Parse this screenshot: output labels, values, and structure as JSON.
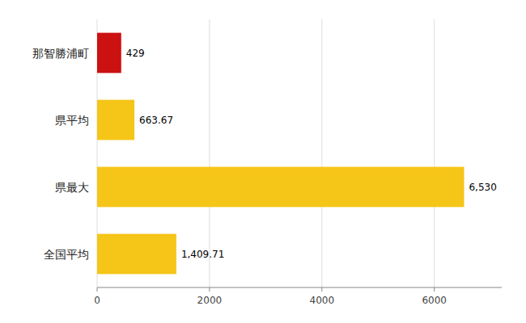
{
  "chart_data": {
    "type": "bar",
    "orientation": "horizontal",
    "categories": [
      "那智勝浦町",
      "県平均",
      "県最大",
      "全国平均"
    ],
    "values": [
      429,
      663.67,
      6530,
      1409.71
    ],
    "value_labels": [
      "429",
      "663.67",
      "6,530",
      "1,409.71"
    ],
    "data_labels": true,
    "colors": [
      "#cc1111",
      "#f5c518",
      "#f5c518",
      "#f5c518"
    ],
    "xlim": [
      0,
      7200
    ],
    "xticks": [
      0,
      2000,
      4000,
      6000
    ],
    "grid": true
  }
}
